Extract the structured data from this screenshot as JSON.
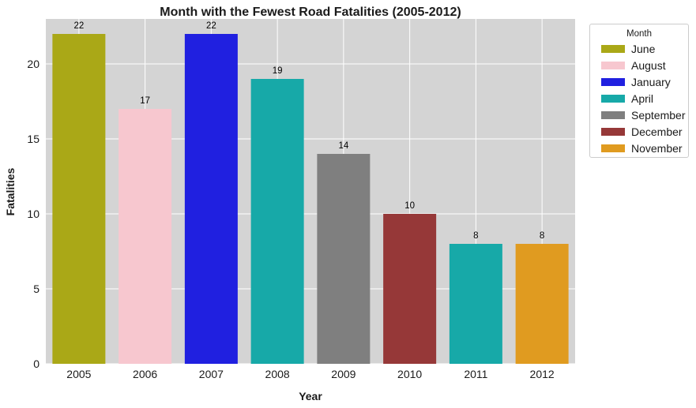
{
  "chart_data": {
    "type": "bar",
    "title": "Month with the Fewest Road Fatalities (2005-2012)",
    "xlabel": "Year",
    "ylabel": "Fatalities",
    "categories": [
      "2005",
      "2006",
      "2007",
      "2008",
      "2009",
      "2010",
      "2011",
      "2012"
    ],
    "values": [
      22,
      17,
      22,
      19,
      14,
      10,
      8,
      8
    ],
    "bar_months": [
      "June",
      "August",
      "January",
      "April",
      "September",
      "December",
      "April",
      "November"
    ],
    "ylim": [
      0,
      23
    ],
    "yticks": [
      0,
      5,
      10,
      15,
      20
    ],
    "grid": true,
    "legend": {
      "title": "Month",
      "placement": "outside-right-top",
      "entries": [
        {
          "label": "June",
          "color": "#aaa817"
        },
        {
          "label": "August",
          "color": "#f7c7cf"
        },
        {
          "label": "January",
          "color": "#2020e0"
        },
        {
          "label": "April",
          "color": "#17a9a8"
        },
        {
          "label": "September",
          "color": "#7f7f7f"
        },
        {
          "label": "December",
          "color": "#963838"
        },
        {
          "label": "November",
          "color": "#e09b20"
        }
      ]
    },
    "colors": {
      "plot_background": "#d4d4d4",
      "grid": "#ffffff"
    }
  }
}
